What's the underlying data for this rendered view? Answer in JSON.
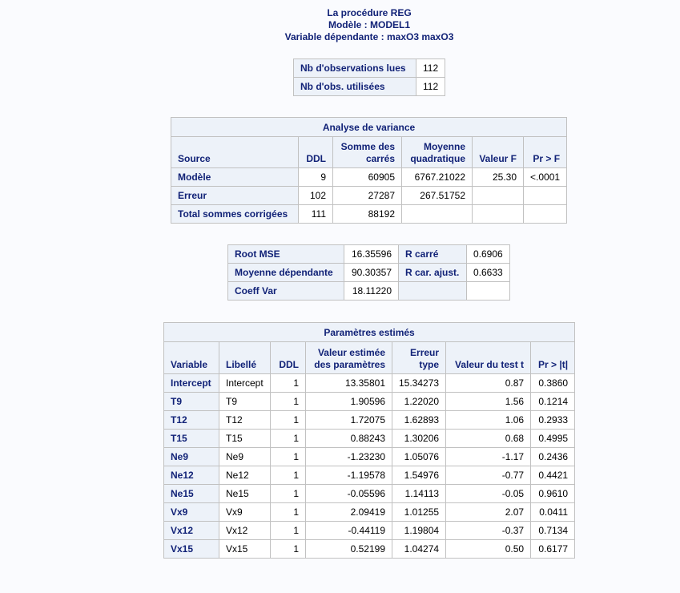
{
  "titles": {
    "line1": "La procédure REG",
    "line2": "Modèle : MODEL1",
    "line3": "Variable dépendante : maxO3 maxO3"
  },
  "obs": {
    "rows": [
      {
        "label": "Nb d'observations lues",
        "value": "112"
      },
      {
        "label": "Nb d'obs. utilisées",
        "value": "112"
      }
    ]
  },
  "anova": {
    "caption": "Analyse de variance",
    "headers": {
      "source": "Source",
      "ddl": "DDL",
      "ss_line1": "Somme des",
      "ss_line2": "carrés",
      "ms_line1": "Moyenne",
      "ms_line2": "quadratique",
      "f": "Valeur F",
      "p": "Pr > F"
    },
    "rows": [
      {
        "source": "Modèle",
        "ddl": "9",
        "ss": "60905",
        "ms": "6767.21022",
        "f": "25.30",
        "p": "<.0001"
      },
      {
        "source": "Erreur",
        "ddl": "102",
        "ss": "27287",
        "ms": "267.51752",
        "f": "",
        "p": ""
      },
      {
        "source": "Total sommes corrigées",
        "ddl": "111",
        "ss": "88192",
        "ms": "",
        "f": "",
        "p": ""
      }
    ]
  },
  "fit": {
    "rows": [
      {
        "label1": "Root MSE",
        "value1": "16.35596",
        "label2": "R carré",
        "value2": "0.6906"
      },
      {
        "label1": "Moyenne dépendante",
        "value1": "90.30357",
        "label2": "R car. ajust.",
        "value2": "0.6633"
      },
      {
        "label1": "Coeff Var",
        "value1": "18.11220",
        "label2": "",
        "value2": ""
      }
    ]
  },
  "params": {
    "caption": "Paramètres estimés",
    "headers": {
      "variable": "Variable",
      "libelle": "Libellé",
      "ddl": "DDL",
      "est_line1": "Valeur estimée",
      "est_line2": "des paramètres",
      "se_line1": "Erreur",
      "se_line2": "type",
      "t": "Valeur du test t",
      "p": "Pr > |t|"
    },
    "rows": [
      {
        "variable": "Intercept",
        "libelle": "Intercept",
        "ddl": "1",
        "est": "13.35801",
        "se": "15.34273",
        "t": "0.87",
        "p": "0.3860"
      },
      {
        "variable": "T9",
        "libelle": "T9",
        "ddl": "1",
        "est": "1.90596",
        "se": "1.22020",
        "t": "1.56",
        "p": "0.1214"
      },
      {
        "variable": "T12",
        "libelle": "T12",
        "ddl": "1",
        "est": "1.72075",
        "se": "1.62893",
        "t": "1.06",
        "p": "0.2933"
      },
      {
        "variable": "T15",
        "libelle": "T15",
        "ddl": "1",
        "est": "0.88243",
        "se": "1.30206",
        "t": "0.68",
        "p": "0.4995"
      },
      {
        "variable": "Ne9",
        "libelle": "Ne9",
        "ddl": "1",
        "est": "-1.23230",
        "se": "1.05076",
        "t": "-1.17",
        "p": "0.2436"
      },
      {
        "variable": "Ne12",
        "libelle": "Ne12",
        "ddl": "1",
        "est": "-1.19578",
        "se": "1.54976",
        "t": "-0.77",
        "p": "0.4421"
      },
      {
        "variable": "Ne15",
        "libelle": "Ne15",
        "ddl": "1",
        "est": "-0.05596",
        "se": "1.14113",
        "t": "-0.05",
        "p": "0.9610"
      },
      {
        "variable": "Vx9",
        "libelle": "Vx9",
        "ddl": "1",
        "est": "2.09419",
        "se": "1.01255",
        "t": "2.07",
        "p": "0.0411"
      },
      {
        "variable": "Vx12",
        "libelle": "Vx12",
        "ddl": "1",
        "est": "-0.44119",
        "se": "1.19804",
        "t": "-0.37",
        "p": "0.7134"
      },
      {
        "variable": "Vx15",
        "libelle": "Vx15",
        "ddl": "1",
        "est": "0.52199",
        "se": "1.04274",
        "t": "0.50",
        "p": "0.6177"
      }
    ]
  }
}
